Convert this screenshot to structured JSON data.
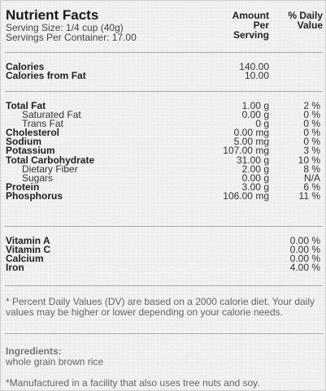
{
  "header": {
    "title": "Nutrient Facts",
    "serving_size": "Serving Size: 1/4 cup (40g)",
    "servings_per_container": "Servings Per Container: 17.00",
    "amount_col_line1": "Amount",
    "amount_col_line2": "Per",
    "amount_col_line3": "Serving",
    "dv_col_line1": "% Daily",
    "dv_col_line2": "Value"
  },
  "calories": {
    "calories_label": "Calories",
    "calories_value": "140.00",
    "fat_calories_label": "Calories from Fat",
    "fat_calories_value": "10.00"
  },
  "nutrients": [
    {
      "label": "Total Fat",
      "amount": "1.00 g",
      "dv": "2 %",
      "style": "bold"
    },
    {
      "label": "Saturated Fat",
      "amount": "0.00 g",
      "dv": "0 %",
      "style": "sub"
    },
    {
      "label": "Trans Fat",
      "amount": "0 g",
      "dv": "0 %",
      "style": "sub"
    },
    {
      "label": "Cholesterol",
      "amount": "0.00 mg",
      "dv": "0 %",
      "style": "bold"
    },
    {
      "label": "Sodium",
      "amount": "5.00 mg",
      "dv": "0 %",
      "style": "bold"
    },
    {
      "label": "Potassium",
      "amount": "107.00 mg",
      "dv": "3 %",
      "style": "bold"
    },
    {
      "label": "Total Carbohydrate",
      "amount": "31.00 g",
      "dv": "10 %",
      "style": "bold"
    },
    {
      "label": "Dietary Fiber",
      "amount": "2.00 g",
      "dv": "8 %",
      "style": "sub"
    },
    {
      "label": "Sugars",
      "amount": "0.00 g",
      "dv": "N/A",
      "style": "sub"
    },
    {
      "label": "Protein",
      "amount": "3.00 g",
      "dv": "6 %",
      "style": "bold"
    },
    {
      "label": "Phosphorus",
      "amount": "106.00 mg",
      "dv": "11 %",
      "style": "bold"
    }
  ],
  "vitamins": [
    {
      "label": "Vitamin A",
      "dv": "0.00 %"
    },
    {
      "label": "Vitamin C",
      "dv": "0.00 %"
    },
    {
      "label": "Calcium",
      "dv": "0.00 %"
    },
    {
      "label": "Iron",
      "dv": "4.00 %"
    }
  ],
  "footnote": "* Percent Daily Values (DV) are based on a 2000 calorie diet. Your daily values may be higher or lower depending on your calorie needs.",
  "ingredients": {
    "heading": "Ingredients:",
    "text": "whole grain brown rice"
  },
  "facility_note": "*Manufactured in a facility that also uses tree nuts and soy."
}
